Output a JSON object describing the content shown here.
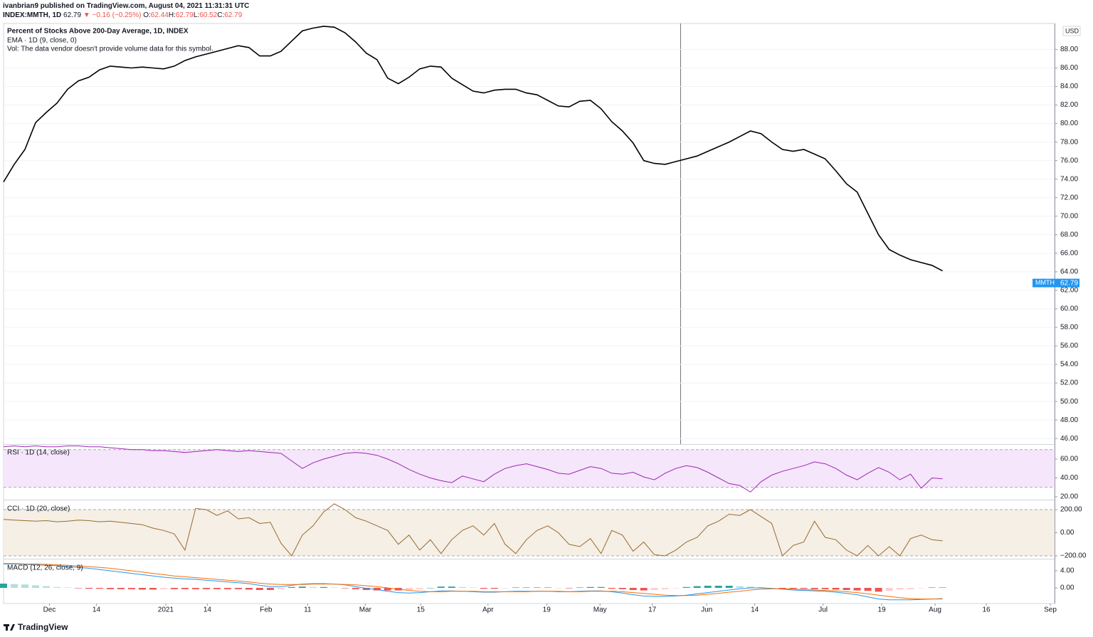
{
  "header": {
    "published": "ivanbrian9 published on TradingView.com, August 04, 2021 11:31:31 UTC",
    "symbol": "INDEX:MMTH, 1D",
    "last": "62.79",
    "change": "▼ −0.16 (−0.25%)",
    "ohlc": [
      {
        "label": "O:",
        "value": "62.44"
      },
      {
        "label": "H:",
        "value": "62.79"
      },
      {
        "label": "L:",
        "value": "60.52"
      },
      {
        "label": "C:",
        "value": "62.79"
      }
    ]
  },
  "footer": {
    "brand": "TradingView"
  },
  "chart_data": [
    {
      "type": "line",
      "title": "Percent of Stocks Above 200-Day Average, 1D, INDEX",
      "annotation": "Vol: The data vendor doesn't provide volume data for this symbol.",
      "currency": "USD",
      "series_label": "MMTH",
      "last_value": 62.79,
      "last_color": "#2196f3",
      "xlim": [
        0,
        98.5
      ],
      "ylim": [
        45.4,
        90.8
      ],
      "grid": true,
      "yticks": [
        {
          "value": 46,
          "label": "46.00"
        },
        {
          "value": 48,
          "label": "48.00"
        },
        {
          "value": 50,
          "label": "50.00"
        },
        {
          "value": 52,
          "label": "52.00"
        },
        {
          "value": 54,
          "label": "54.00"
        },
        {
          "value": 56,
          "label": "56.00"
        },
        {
          "value": 58,
          "label": "58.00"
        },
        {
          "value": 60,
          "label": "60.00"
        },
        {
          "value": 62,
          "label": "62.00"
        },
        {
          "value": 64,
          "label": "64.00"
        },
        {
          "value": 66,
          "label": "66.00"
        },
        {
          "value": 68,
          "label": "68.00"
        },
        {
          "value": 70,
          "label": "70.00"
        },
        {
          "value": 72,
          "label": "72.00"
        },
        {
          "value": 74,
          "label": "74.00"
        },
        {
          "value": 76,
          "label": "76.00"
        },
        {
          "value": 78,
          "label": "78.00"
        },
        {
          "value": 80,
          "label": "80.00"
        },
        {
          "value": 82,
          "label": "82.00"
        },
        {
          "value": 84,
          "label": "84.00"
        },
        {
          "value": 86,
          "label": "86.00"
        },
        {
          "value": 88,
          "label": "88.00"
        }
      ],
      "series": [
        {
          "name": "EMA · 1D (9, close, 0)",
          "color": "#000000",
          "values": [
            73.7,
            75.6,
            77.2,
            80.1,
            81.2,
            82.2,
            83.7,
            84.6,
            85.0,
            85.8,
            86.2,
            86.1,
            86.0,
            86.1,
            86.0,
            85.9,
            86.2,
            86.8,
            87.2,
            87.5,
            87.8,
            88.1,
            88.4,
            88.2,
            87.3,
            87.3,
            87.8,
            88.9,
            90.0,
            90.3,
            90.5,
            90.4,
            89.8,
            88.8,
            87.6,
            86.9,
            84.9,
            84.3,
            85.0,
            85.9,
            86.2,
            86.1,
            84.9,
            84.2,
            83.5,
            83.3,
            83.6,
            83.7,
            83.7,
            83.3,
            83.1,
            82.5,
            81.9,
            81.8,
            82.4,
            82.5,
            81.6,
            80.2,
            79.2,
            77.9,
            76.0,
            75.7,
            75.6,
            75.9,
            76.2,
            76.5,
            77.0,
            77.5,
            78.0,
            78.6,
            79.2,
            78.9,
            78.0,
            77.2,
            77.0,
            77.2,
            76.7,
            76.2,
            74.9,
            73.5,
            72.6,
            70.3,
            68.0,
            66.4,
            65.8,
            65.3,
            65.0,
            64.7,
            64.1
          ]
        }
      ]
    },
    {
      "type": "line",
      "title": "RSI · 1D (14, close)",
      "xlim": [
        0,
        98.5
      ],
      "ylim": [
        17.7,
        75.1
      ],
      "bands": [
        30,
        70
      ],
      "band_color": "#f5e6fb",
      "yticks": [
        {
          "value": 20,
          "label": "20.00"
        },
        {
          "value": 40,
          "label": "40.00"
        },
        {
          "value": 60,
          "label": "60.00"
        }
      ],
      "series": [
        {
          "name": "RSI",
          "color": "#9c27b0",
          "values": [
            73,
            74,
            73,
            74,
            73,
            73,
            74,
            74,
            73,
            73,
            72,
            71,
            70,
            70,
            69,
            69,
            68,
            67,
            68,
            69,
            70,
            69,
            68,
            69,
            68,
            67,
            66,
            58,
            50,
            56,
            60,
            63,
            66,
            67,
            66,
            64,
            60,
            55,
            49,
            44,
            40,
            37,
            35,
            42,
            39,
            36,
            44,
            50,
            53,
            55,
            52,
            49,
            45,
            44,
            48,
            52,
            50,
            45,
            44,
            46,
            41,
            38,
            45,
            50,
            53,
            51,
            46,
            40,
            34,
            32,
            25,
            36,
            43,
            47,
            50,
            53,
            57,
            55,
            50,
            43,
            38,
            45,
            51,
            46,
            38,
            44,
            29,
            40,
            39
          ]
        }
      ]
    },
    {
      "type": "line",
      "title": "CCI · 1D (20, close)",
      "xlim": [
        0,
        98.5
      ],
      "ylim": [
        -212,
        274
      ],
      "bands": [
        -200,
        200
      ],
      "band_color": "#f5efe6",
      "yticks": [
        {
          "value": 200,
          "label": "200.00"
        },
        {
          "value": 0,
          "label": "0.00"
        },
        {
          "value": -200,
          "label": "−200.00"
        }
      ],
      "series": [
        {
          "name": "CCI",
          "color": "#996a2c",
          "values": [
            115,
            110,
            105,
            100,
            105,
            95,
            100,
            110,
            105,
            95,
            100,
            90,
            80,
            70,
            40,
            20,
            -10,
            -150,
            210,
            200,
            150,
            190,
            120,
            130,
            80,
            90,
            -90,
            -200,
            -20,
            60,
            180,
            250,
            200,
            130,
            100,
            60,
            20,
            -100,
            -20,
            -150,
            -60,
            -180,
            -60,
            20,
            60,
            -20,
            80,
            -100,
            -180,
            -60,
            20,
            60,
            0,
            -100,
            -120,
            -50,
            -180,
            20,
            -20,
            -160,
            -80,
            -190,
            -200,
            -150,
            -80,
            -40,
            60,
            100,
            160,
            150,
            200,
            140,
            80,
            -200,
            -110,
            -80,
            100,
            -40,
            -60,
            -150,
            -200,
            -110,
            -200,
            -120,
            -200,
            -50,
            -20,
            -60,
            -70
          ]
        }
      ]
    },
    {
      "type": "macd",
      "title": "MACD (12, 26, close, 9)",
      "xlim": [
        0,
        98.5
      ],
      "ylim": [
        -3.67,
        6.5
      ],
      "yticks": [
        {
          "value": 4,
          "label": "4.00"
        },
        {
          "value": 0,
          "label": "0.00"
        }
      ],
      "xticks": [
        {
          "value": 4.3,
          "label": "Dec"
        },
        {
          "value": 8.7,
          "label": "14"
        },
        {
          "value": 15.2,
          "label": "2021"
        },
        {
          "value": 19.1,
          "label": "14"
        },
        {
          "value": 24.6,
          "label": "Feb"
        },
        {
          "value": 28.5,
          "label": "11"
        },
        {
          "value": 33.9,
          "label": "Mar"
        },
        {
          "value": 39.1,
          "label": "15"
        },
        {
          "value": 45.4,
          "label": "Apr"
        },
        {
          "value": 50.9,
          "label": "19"
        },
        {
          "value": 55.9,
          "label": "May"
        },
        {
          "value": 60.8,
          "label": "17"
        },
        {
          "value": 65.9,
          "label": "Jun"
        },
        {
          "value": 70.4,
          "label": "14"
        },
        {
          "value": 76.8,
          "label": "Jul"
        },
        {
          "value": 82.3,
          "label": "19"
        },
        {
          "value": 87.3,
          "label": "Aug"
        },
        {
          "value": 92.1,
          "label": "16"
        },
        {
          "value": 98.1,
          "label": "Sep"
        }
      ],
      "histogram": {
        "name": "Histogram",
        "colors": {
          "rise_above": "#26a69a",
          "fall_above": "#b2dfdb",
          "rise_below": "#ffcdd2",
          "fall_below": "#ef5350"
        },
        "values": [
          1.0,
          0.9,
          0.8,
          0.6,
          0.4,
          0.2,
          0.1,
          -0.1,
          -0.2,
          -0.2,
          -0.3,
          -0.3,
          -0.3,
          -0.4,
          -0.4,
          -0.3,
          -0.3,
          -0.3,
          -0.3,
          -0.3,
          -0.3,
          -0.3,
          -0.3,
          -0.4,
          -0.5,
          -0.5,
          -0.3,
          0.2,
          0.3,
          0.2,
          0.2,
          0.1,
          -0.1,
          -0.3,
          -0.5,
          -0.6,
          -0.6,
          -0.6,
          -0.5,
          -0.3,
          0.0,
          0.3,
          0.3,
          0.2,
          0.1,
          -0.2,
          -0.2,
          -0.1,
          0.1,
          0.1,
          0.1,
          0.1,
          0.0,
          -0.1,
          0.1,
          0.2,
          0.2,
          -0.2,
          -0.3,
          -0.5,
          -0.6,
          -0.5,
          -0.3,
          -0.1,
          0.2,
          0.4,
          0.5,
          0.5,
          0.5,
          0.4,
          0.3,
          0.2,
          0.0,
          -0.2,
          -0.2,
          -0.2,
          -0.3,
          -0.3,
          -0.4,
          -0.5,
          -0.6,
          -0.7,
          -0.9,
          -0.7,
          -0.4,
          -0.3,
          -0.1,
          0.1,
          0.1
        ]
      },
      "series": [
        {
          "name": "MACD",
          "color": "#2196f3",
          "values": [
            5.6,
            5.6,
            5.5,
            5.4,
            5.3,
            5.2,
            5.0,
            4.8,
            4.6,
            4.3,
            4.0,
            3.7,
            3.4,
            3.1,
            2.8,
            2.5,
            2.3,
            2.1,
            2.0,
            1.8,
            1.6,
            1.4,
            1.2,
            1.0,
            0.6,
            0.3,
            0.3,
            0.6,
            0.9,
            1.0,
            1.0,
            0.9,
            0.7,
            0.3,
            -0.1,
            -0.4,
            -0.8,
            -1.1,
            -1.2,
            -1.1,
            -0.9,
            -0.7,
            -0.7,
            -0.8,
            -0.9,
            -1.0,
            -1.0,
            -0.9,
            -0.8,
            -0.8,
            -0.8,
            -0.8,
            -0.9,
            -0.9,
            -0.8,
            -0.7,
            -0.7,
            -0.9,
            -1.2,
            -1.6,
            -1.9,
            -2.0,
            -2.0,
            -1.9,
            -1.7,
            -1.4,
            -1.1,
            -0.8,
            -0.5,
            -0.2,
            0.0,
            0.0,
            -0.1,
            -0.3,
            -0.5,
            -0.6,
            -0.7,
            -0.8,
            -1.0,
            -1.3,
            -1.6,
            -2.1,
            -2.6,
            -2.8,
            -2.8,
            -2.8,
            -2.7,
            -2.6,
            -2.5
          ]
        },
        {
          "name": "Signal",
          "color": "#ff6d00",
          "values": [
            5.7,
            5.7,
            5.6,
            5.6,
            5.5,
            5.4,
            5.3,
            5.1,
            5.0,
            4.8,
            4.6,
            4.3,
            4.0,
            3.7,
            3.4,
            3.1,
            2.8,
            2.6,
            2.4,
            2.2,
            2.0,
            1.8,
            1.6,
            1.4,
            1.1,
            0.9,
            0.8,
            0.8,
            0.8,
            0.9,
            0.9,
            0.9,
            0.8,
            0.7,
            0.5,
            0.3,
            0.0,
            -0.3,
            -0.6,
            -0.8,
            -0.9,
            -0.9,
            -0.8,
            -0.8,
            -0.8,
            -0.9,
            -0.9,
            -0.9,
            -0.9,
            -0.9,
            -0.8,
            -0.8,
            -0.8,
            -0.9,
            -0.9,
            -0.8,
            -0.8,
            -0.8,
            -0.9,
            -1.1,
            -1.3,
            -1.5,
            -1.7,
            -1.8,
            -1.8,
            -1.7,
            -1.5,
            -1.3,
            -1.0,
            -0.8,
            -0.5,
            -0.3,
            -0.2,
            -0.2,
            -0.3,
            -0.4,
            -0.5,
            -0.6,
            -0.7,
            -0.9,
            -1.1,
            -1.4,
            -1.7,
            -2.0,
            -2.3,
            -2.5,
            -2.6,
            -2.6,
            -2.6
          ]
        }
      ]
    }
  ]
}
